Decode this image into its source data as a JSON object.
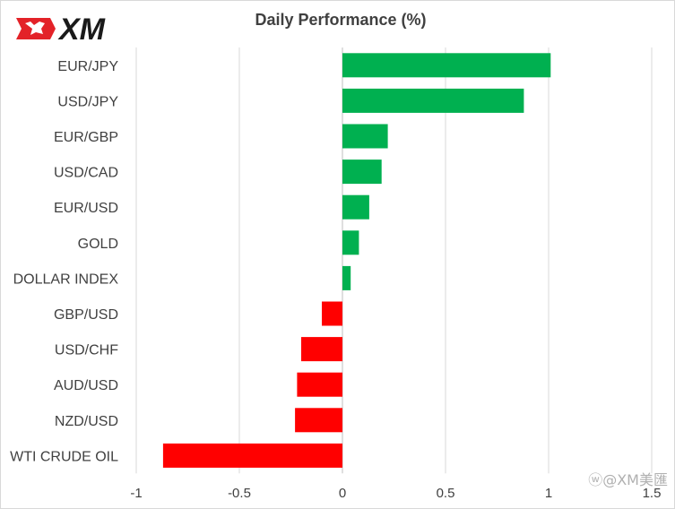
{
  "logo": {
    "text": "XM",
    "icon": "bull-logo-icon",
    "brand_color": "#e32228"
  },
  "watermark": {
    "text": "@XM美匯",
    "icon": "weibo-icon"
  },
  "chart_data": {
    "type": "bar",
    "orientation": "horizontal",
    "title": "Daily Performance  (%)",
    "categories": [
      "EUR/JPY",
      "USD/JPY",
      "EUR/GBP",
      "USD/CAD",
      "EUR/USD",
      "GOLD",
      "DOLLAR INDEX",
      "GBP/USD",
      "USD/CHF",
      "AUD/USD",
      "NZD/USD",
      "WTI CRUDE OIL"
    ],
    "values": [
      1.01,
      0.88,
      0.22,
      0.19,
      0.13,
      0.08,
      0.04,
      -0.1,
      -0.2,
      -0.22,
      -0.23,
      -0.87
    ],
    "xlim": [
      -1,
      1.5
    ],
    "xticks": [
      -1,
      -0.5,
      0,
      0.5,
      1,
      1.5
    ],
    "xtick_labels": [
      "-1",
      "-0.5",
      "0",
      "0.5",
      "1",
      "1.5"
    ],
    "positive_color": "#00b050",
    "negative_color": "#ff0000",
    "grid": "vertical",
    "legend": "none"
  }
}
